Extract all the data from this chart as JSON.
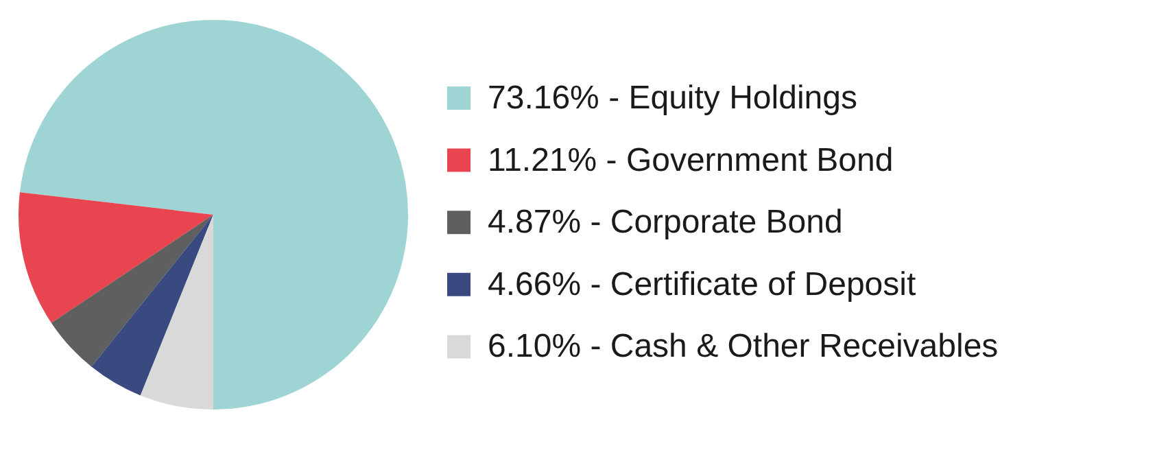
{
  "chart_data": {
    "type": "pie",
    "categories": [
      "73.16% - Equity Holdings",
      "11.21% - Government Bond",
      "4.87% - Corporate Bond",
      "4.66% - Certificate of Deposit",
      "6.10% - Cash & Other Receivables"
    ],
    "values": [
      73.16,
      11.21,
      4.87,
      4.66,
      6.1
    ],
    "colors": [
      "#9fd4d4",
      "#e84550",
      "#5f5f5f",
      "#3a4a80",
      "#d9d9d9"
    ],
    "legend": "right"
  }
}
